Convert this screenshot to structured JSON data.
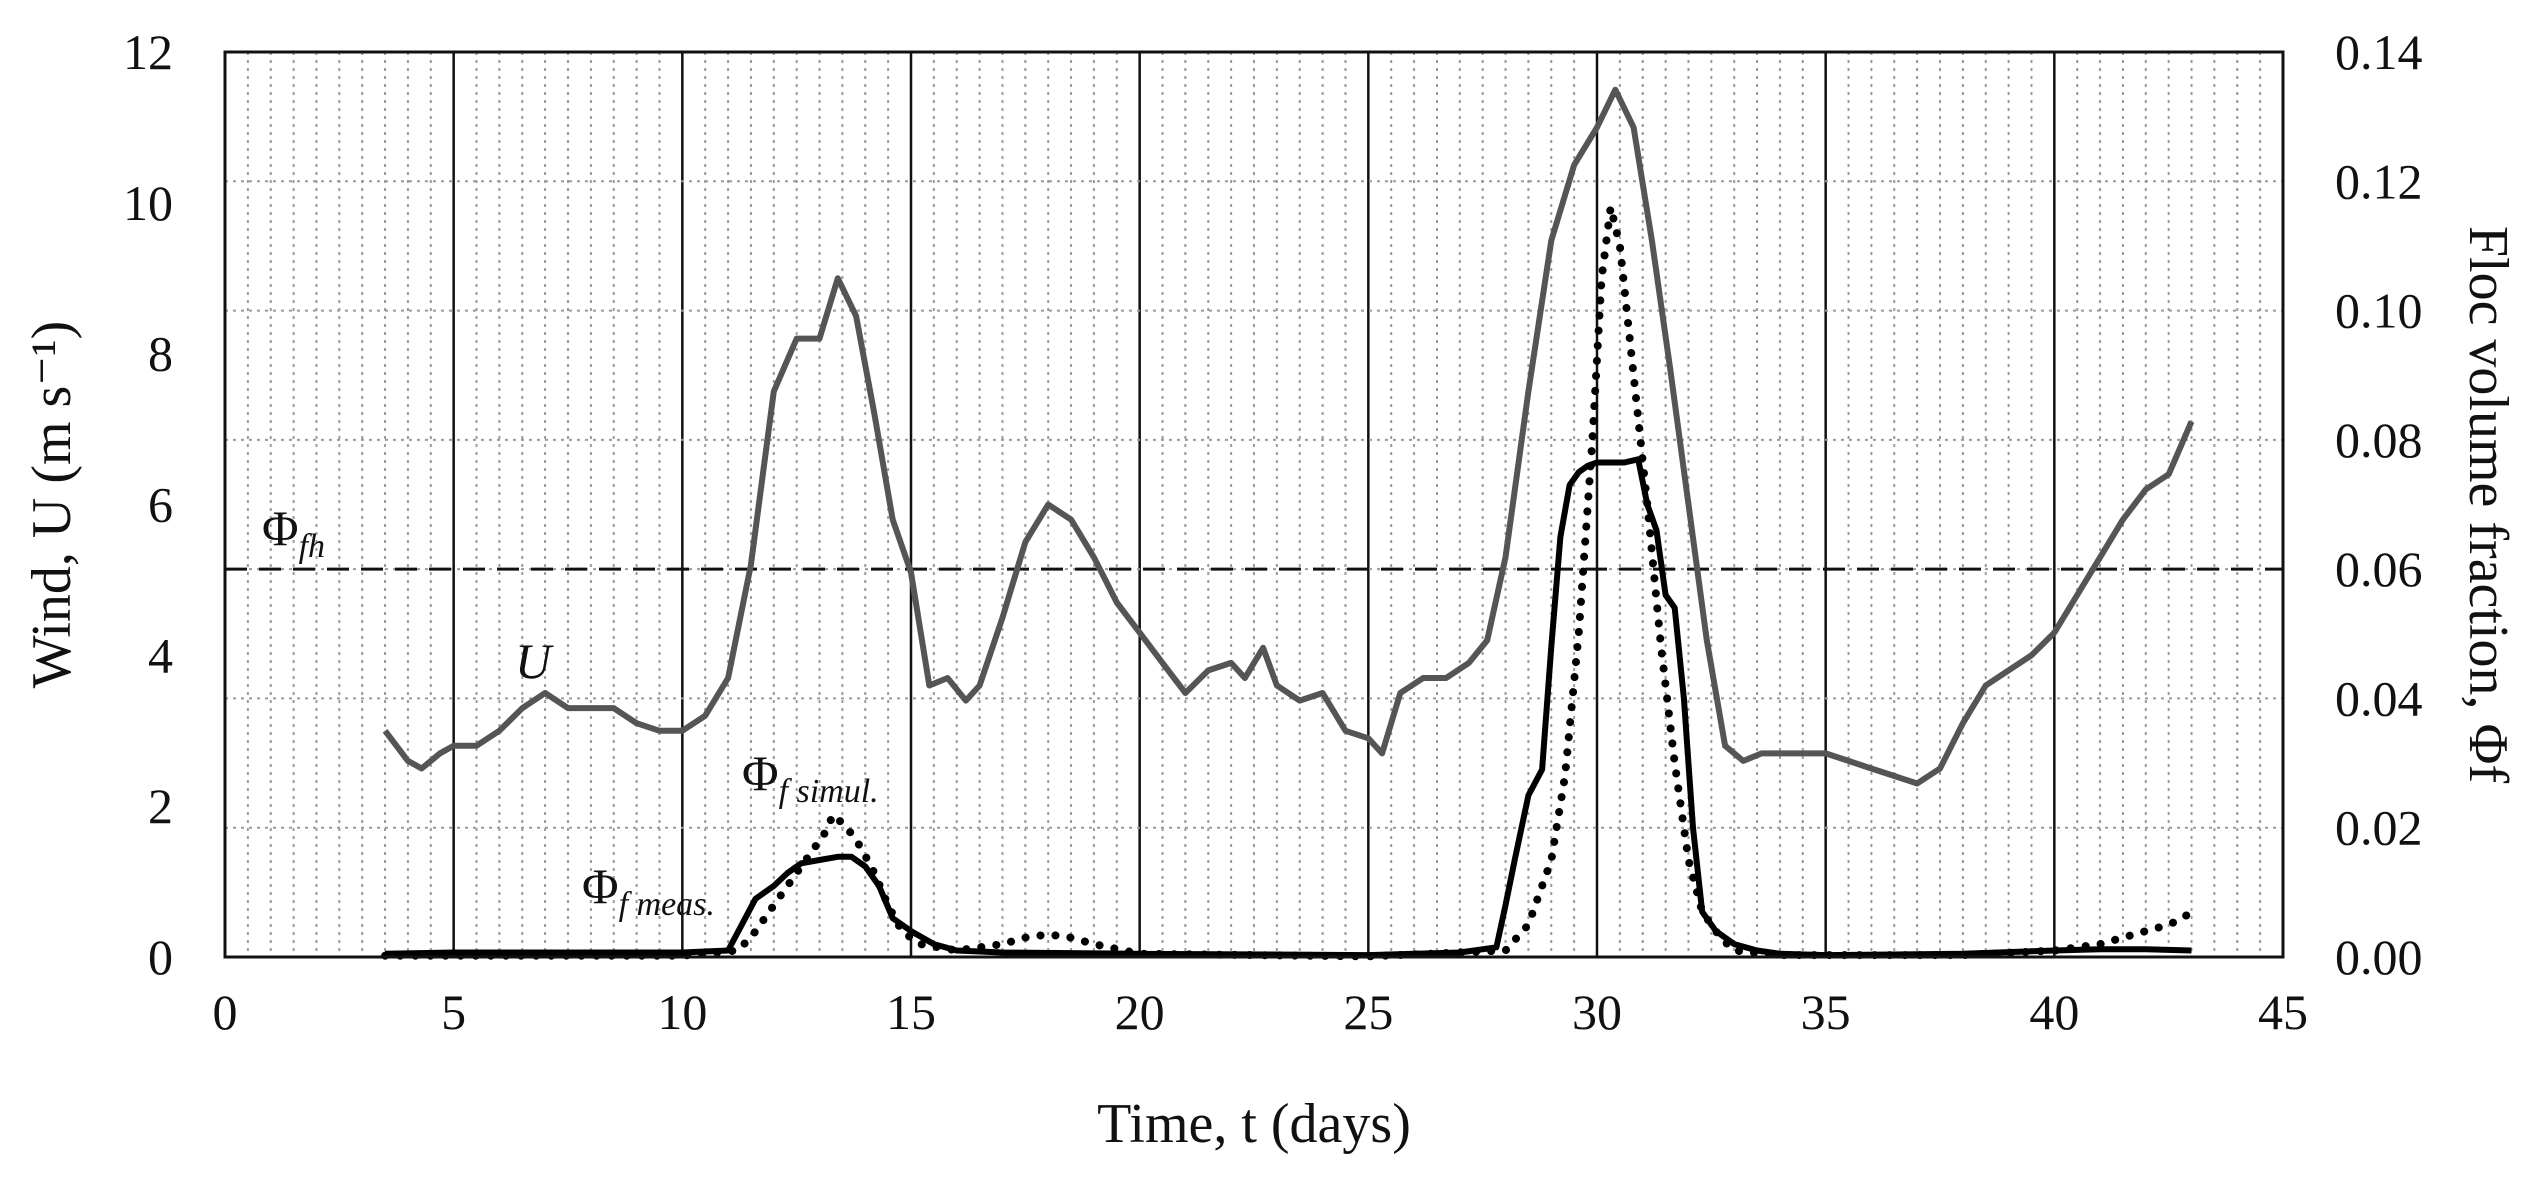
{
  "chart_data": {
    "type": "line",
    "xlabel": "Time, t (days)",
    "ylabel": "Wind, U (m s⁻¹)",
    "y2label": "Floc volume fraction, Φf",
    "xlim": [
      0,
      45
    ],
    "ylim": [
      0,
      12
    ],
    "y2lim": [
      0,
      0.14
    ],
    "x_ticks": [
      "0",
      "5",
      "10",
      "15",
      "20",
      "25",
      "30",
      "35",
      "40",
      "45"
    ],
    "y_ticks": [
      "0",
      "2",
      "4",
      "6",
      "8",
      "10",
      "12"
    ],
    "y2_ticks": [
      "0.00",
      "0.02",
      "0.04",
      "0.06",
      "0.08",
      "0.10",
      "0.12",
      "0.14"
    ],
    "grid": "major solid vertical every 5 days; minor dotted vertical every 0.5 day; dotted horizontal at y2 ticks",
    "threshold": {
      "y2": 0.06,
      "style": "dashed"
    },
    "annotations": {
      "U": "U",
      "phi_fh": {
        "symbol": "Φ",
        "sub": "fh"
      },
      "phi_simul": {
        "symbol": "Φ",
        "sub": "f simul."
      },
      "phi_meas": {
        "symbol": "Φ",
        "sub": "f meas."
      }
    },
    "series": [
      {
        "id": "wind",
        "axis": "left",
        "style": "solid-gray",
        "x": [
          3.5,
          4.0,
          4.3,
          4.7,
          5.0,
          5.5,
          6.0,
          6.5,
          7.0,
          7.5,
          8.0,
          8.5,
          9.0,
          9.5,
          10.0,
          10.5,
          11.0,
          11.5,
          12.0,
          12.5,
          13.0,
          13.4,
          13.8,
          14.2,
          14.6,
          15.0,
          15.4,
          15.8,
          16.2,
          16.5,
          17.0,
          17.5,
          18.0,
          18.5,
          19.0,
          19.5,
          20.0,
          20.5,
          21.0,
          21.5,
          22.0,
          22.3,
          22.7,
          23.0,
          23.5,
          24.0,
          24.5,
          25.0,
          25.3,
          25.7,
          26.2,
          26.7,
          27.2,
          27.6,
          28.0,
          28.5,
          29.0,
          29.5,
          30.0,
          30.4,
          30.8,
          31.2,
          31.6,
          32.0,
          32.4,
          32.8,
          33.2,
          33.6,
          34.0,
          34.5,
          35.0,
          35.5,
          36.0,
          36.5,
          37.0,
          37.5,
          38.0,
          38.5,
          39.0,
          39.5,
          40.0,
          40.5,
          41.0,
          41.5,
          42.0,
          42.5,
          43.0
        ],
        "values": [
          3.0,
          2.6,
          2.5,
          2.7,
          2.8,
          2.8,
          3.0,
          3.3,
          3.5,
          3.3,
          3.3,
          3.3,
          3.1,
          3.0,
          3.0,
          3.2,
          3.7,
          5.2,
          7.5,
          8.2,
          8.2,
          9.0,
          8.5,
          7.2,
          5.8,
          5.1,
          3.6,
          3.7,
          3.4,
          3.6,
          4.5,
          5.5,
          6.0,
          5.8,
          5.3,
          4.7,
          4.3,
          3.9,
          3.5,
          3.8,
          3.9,
          3.7,
          4.1,
          3.6,
          3.4,
          3.5,
          3.0,
          2.9,
          2.7,
          3.5,
          3.7,
          3.7,
          3.9,
          4.2,
          5.3,
          7.5,
          9.5,
          10.5,
          11.0,
          11.5,
          11.0,
          9.5,
          7.8,
          6.0,
          4.2,
          2.8,
          2.6,
          2.7,
          2.7,
          2.7,
          2.7,
          2.6,
          2.5,
          2.4,
          2.3,
          2.5,
          3.1,
          3.6,
          3.8,
          4.0,
          4.3,
          4.8,
          5.3,
          5.8,
          6.2,
          6.4,
          7.1
        ]
      },
      {
        "id": "phi_meas",
        "axis": "right",
        "style": "solid-black",
        "x": [
          3.5,
          5.0,
          10.0,
          11.0,
          11.3,
          11.6,
          12.0,
          12.3,
          12.6,
          13.0,
          13.4,
          13.7,
          14.0,
          14.3,
          14.6,
          15.0,
          15.5,
          16.0,
          17.0,
          20.0,
          25.0,
          27.0,
          27.8,
          28.0,
          28.2,
          28.5,
          28.8,
          29.0,
          29.2,
          29.4,
          29.6,
          29.8,
          30.0,
          30.3,
          30.6,
          30.9,
          31.1,
          31.3,
          31.5,
          31.7,
          31.9,
          32.1,
          32.3,
          32.6,
          33.0,
          33.5,
          34.0,
          35.0,
          38.0,
          40.0,
          41.0,
          42.0,
          43.0
        ],
        "values": [
          0.0005,
          0.0007,
          0.0007,
          0.001,
          0.005,
          0.009,
          0.011,
          0.013,
          0.0145,
          0.015,
          0.0155,
          0.0155,
          0.014,
          0.011,
          0.006,
          0.004,
          0.002,
          0.001,
          0.0007,
          0.0005,
          0.0003,
          0.0007,
          0.0015,
          0.008,
          0.015,
          0.025,
          0.029,
          0.048,
          0.065,
          0.073,
          0.075,
          0.076,
          0.0765,
          0.0765,
          0.0765,
          0.077,
          0.07,
          0.066,
          0.056,
          0.054,
          0.04,
          0.02,
          0.007,
          0.004,
          0.002,
          0.001,
          0.0005,
          0.0003,
          0.0005,
          0.001,
          0.0012,
          0.0012,
          0.001
        ]
      },
      {
        "id": "phi_simul",
        "axis": "right",
        "style": "dotted-black",
        "x": [
          3.5,
          5.0,
          10.0,
          11.2,
          11.5,
          11.8,
          12.2,
          12.6,
          12.9,
          13.1,
          13.3,
          13.6,
          13.9,
          14.2,
          14.5,
          14.8,
          15.2,
          16.0,
          17.0,
          17.5,
          18.0,
          18.5,
          19.0,
          20.0,
          25.0,
          28.0,
          28.5,
          29.0,
          29.3,
          29.6,
          29.9,
          30.1,
          30.3,
          30.5,
          30.8,
          31.1,
          31.4,
          31.7,
          32.0,
          32.3,
          32.7,
          33.0,
          34.0,
          38.0,
          40.0,
          41.0,
          41.5,
          42.0,
          42.5,
          42.8,
          43.0
        ],
        "values": [
          0.0002,
          0.0002,
          0.0002,
          0.001,
          0.003,
          0.006,
          0.01,
          0.014,
          0.017,
          0.019,
          0.022,
          0.02,
          0.017,
          0.013,
          0.008,
          0.004,
          0.002,
          0.001,
          0.002,
          0.003,
          0.0035,
          0.003,
          0.002,
          0.0005,
          0.0001,
          0.001,
          0.005,
          0.015,
          0.028,
          0.05,
          0.08,
          0.105,
          0.116,
          0.11,
          0.09,
          0.07,
          0.048,
          0.03,
          0.015,
          0.007,
          0.003,
          0.001,
          0.0003,
          0.0003,
          0.001,
          0.002,
          0.003,
          0.004,
          0.005,
          0.006,
          0.007
        ]
      }
    ]
  }
}
